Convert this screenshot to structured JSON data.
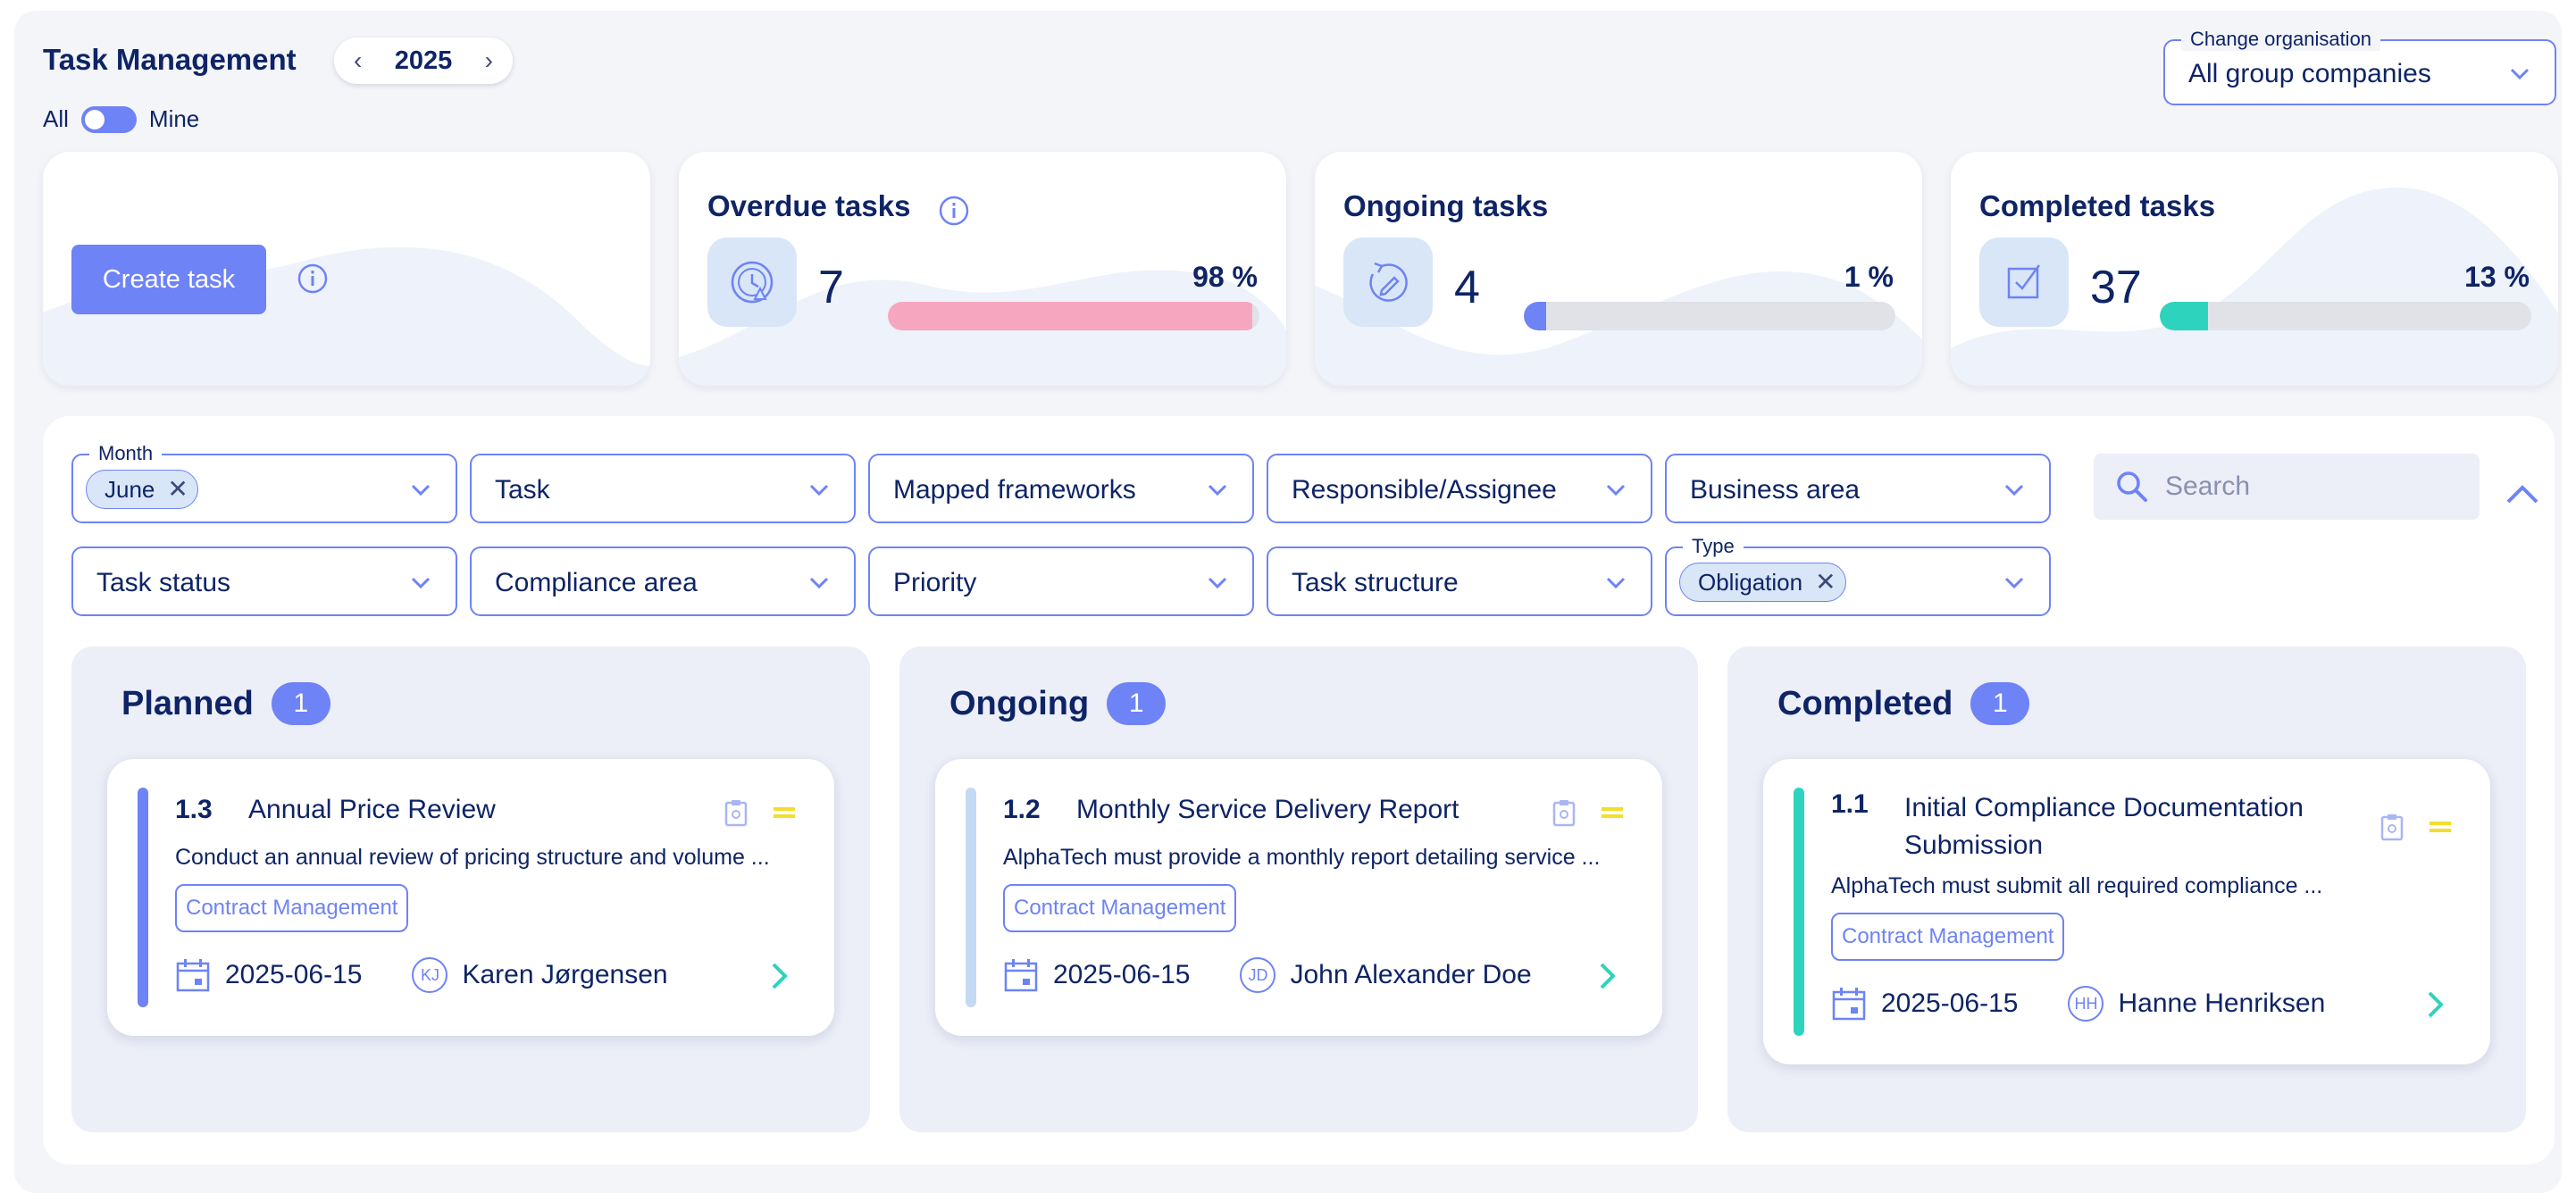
{
  "header": {
    "title": "Task Management",
    "year": "2025",
    "toggle_left": "All",
    "toggle_right": "Mine",
    "org_legend": "Change organisation",
    "org_value": "All group companies"
  },
  "actions": {
    "create_task": "Create task"
  },
  "stats": [
    {
      "title": "Overdue tasks",
      "count": "7",
      "percent_label": "98 %",
      "percent": 98,
      "color": "#f7a6bf",
      "icon": "overdue-clock-icon"
    },
    {
      "title": "Ongoing tasks",
      "count": "4",
      "percent_label": "1 %",
      "percent": 1,
      "color": "#6e83f5",
      "icon": "ongoing-edit-icon"
    },
    {
      "title": "Completed tasks",
      "count": "37",
      "percent_label": "13 %",
      "percent": 13,
      "color": "#2ed3bd",
      "icon": "completed-check-icon"
    }
  ],
  "filters": {
    "month": {
      "legend": "Month",
      "chip": "June"
    },
    "task": "Task",
    "mapped_frameworks": "Mapped frameworks",
    "responsible": "Responsible/Assignee",
    "business_area": "Business area",
    "search_placeholder": "Search",
    "task_status": "Task status",
    "compliance_area": "Compliance area",
    "priority": "Priority",
    "task_structure": "Task structure",
    "type": {
      "legend": "Type",
      "chip": "Obligation"
    }
  },
  "columns": [
    {
      "title": "Planned",
      "count": "1",
      "task": {
        "number": "1.3",
        "title": "Annual Price Review",
        "description": "Conduct an annual review of pricing structure and volume ...",
        "tag": "Contract Management",
        "date": "2025-06-15",
        "initials": "KJ",
        "assignee": "Karen Jørgensen",
        "stripe": "#6e83f5"
      }
    },
    {
      "title": "Ongoing",
      "count": "1",
      "task": {
        "number": "1.2",
        "title": "Monthly Service Delivery Report",
        "description": "AlphaTech must provide a monthly report detailing service ...",
        "tag": "Contract Management",
        "date": "2025-06-15",
        "initials": "JD",
        "assignee": "John Alexander Doe",
        "stripe": "#c5d9f2"
      }
    },
    {
      "title": "Completed",
      "count": "1",
      "task": {
        "number": "1.1",
        "title_line1": "Initial Compliance Documentation",
        "title_line2": "Submission",
        "description": "AlphaTech must submit all required compliance ...",
        "tag": "Contract Management",
        "date": "2025-06-15",
        "initials": "HH",
        "assignee": "Hanne Henriksen",
        "stripe": "#2ed3bd"
      }
    }
  ]
}
